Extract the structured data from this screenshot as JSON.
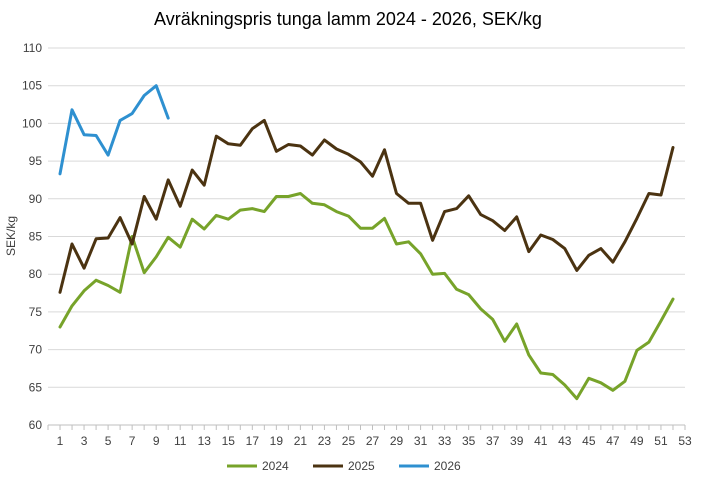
{
  "chart_data": {
    "type": "line",
    "title": "Avräkningspris tunga lamm 2024 - 2026, SEK/kg",
    "xlabel": "",
    "ylabel": "SEK/kg",
    "xlim": [
      0,
      53
    ],
    "ylim": [
      60,
      110
    ],
    "x_ticks": [
      1,
      3,
      5,
      7,
      9,
      11,
      13,
      15,
      17,
      19,
      21,
      23,
      25,
      27,
      29,
      31,
      33,
      35,
      37,
      39,
      41,
      43,
      45,
      47,
      49,
      51,
      53
    ],
    "y_ticks": [
      60,
      65,
      70,
      75,
      80,
      85,
      90,
      95,
      100,
      105,
      110
    ],
    "grid": "horizontal",
    "legend": "bottom",
    "series": [
      {
        "name": "2024",
        "color": "#77a32a",
        "x": [
          1,
          2,
          3,
          4,
          5,
          6,
          7,
          8,
          9,
          10,
          11,
          12,
          13,
          14,
          15,
          16,
          17,
          18,
          19,
          20,
          21,
          22,
          23,
          24,
          25,
          26,
          27,
          28,
          29,
          30,
          31,
          32,
          33,
          34,
          35,
          36,
          37,
          38,
          39,
          40,
          41,
          42,
          43,
          44,
          45,
          46,
          47,
          48,
          49,
          50,
          51,
          52
        ],
        "values": [
          73.0,
          75.8,
          77.8,
          79.2,
          78.5,
          77.6,
          85.0,
          80.2,
          82.3,
          84.9,
          83.6,
          87.3,
          86.0,
          87.8,
          87.3,
          88.5,
          88.7,
          88.3,
          90.3,
          90.3,
          90.7,
          89.4,
          89.2,
          88.3,
          87.7,
          86.1,
          86.1,
          87.4,
          84.0,
          84.3,
          82.7,
          80.0,
          80.1,
          78.0,
          77.3,
          75.4,
          74.0,
          71.1,
          73.4,
          69.3,
          66.9,
          66.7,
          65.3,
          63.5,
          66.2,
          65.6,
          64.6,
          65.8,
          69.9,
          71.0,
          73.8,
          76.7
        ]
      },
      {
        "name": "2025",
        "color": "#4b3311",
        "x": [
          1,
          2,
          3,
          4,
          5,
          6,
          7,
          8,
          9,
          10,
          11,
          12,
          13,
          14,
          15,
          16,
          17,
          18,
          19,
          20,
          21,
          22,
          23,
          24,
          25,
          26,
          27,
          28,
          29,
          30,
          31,
          32,
          33,
          34,
          35,
          36,
          37,
          38,
          39,
          40,
          41,
          42,
          43,
          44,
          45,
          46,
          47,
          48,
          49,
          50,
          51,
          52
        ],
        "values": [
          77.6,
          84.0,
          80.8,
          84.7,
          84.8,
          87.5,
          84.0,
          90.3,
          87.3,
          92.5,
          89.0,
          93.8,
          91.8,
          98.3,
          97.3,
          97.1,
          99.3,
          100.4,
          96.3,
          97.2,
          97.0,
          95.8,
          97.8,
          96.6,
          95.9,
          94.9,
          93.0,
          96.5,
          90.7,
          89.4,
          89.4,
          84.5,
          88.3,
          88.7,
          90.4,
          87.9,
          87.1,
          85.8,
          87.6,
          83.0,
          85.2,
          84.6,
          83.4,
          80.5,
          82.5,
          83.4,
          81.6,
          84.3,
          87.4,
          90.7,
          90.5,
          96.8
        ]
      },
      {
        "name": "2026",
        "color": "#2e90d0",
        "x": [
          1,
          2,
          3,
          4,
          5,
          6,
          7,
          8,
          9,
          10
        ],
        "values": [
          93.3,
          101.8,
          98.5,
          98.4,
          95.8,
          100.4,
          101.3,
          103.7,
          105.0,
          100.7
        ]
      }
    ]
  }
}
